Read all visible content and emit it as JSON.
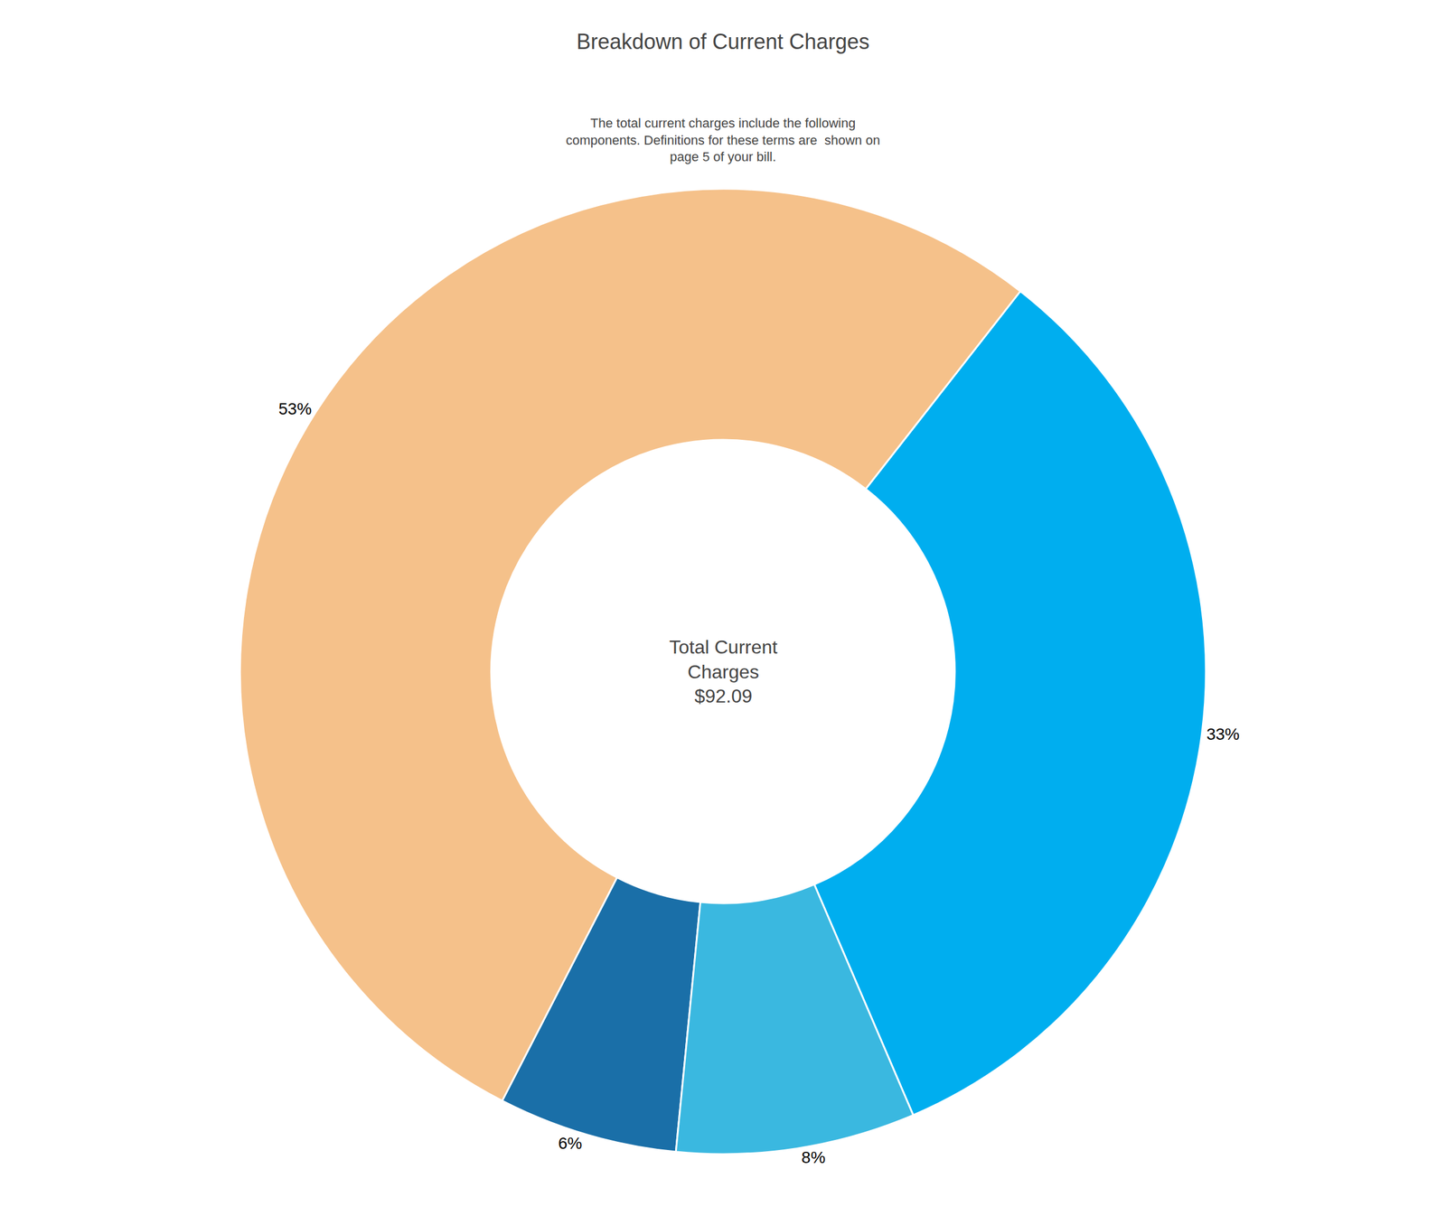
{
  "chart_data": {
    "type": "donut",
    "title": "Breakdown of Current Charges",
    "subtitle": "The total current charges include the following\ncomponents. Definitions for these terms are  shown on\npage 5 of your bill.",
    "values": [
      33,
      53,
      6,
      8
    ],
    "value_labels": [
      "33%",
      "53%",
      "6%",
      "8%"
    ],
    "colors": [
      "#00aeef",
      "#f5c18a",
      "#1a6fa8",
      "#3ab8e0"
    ],
    "data_labels": true,
    "annotations": [
      {
        "text": "Total Current\nCharges\n$92.09"
      }
    ]
  }
}
